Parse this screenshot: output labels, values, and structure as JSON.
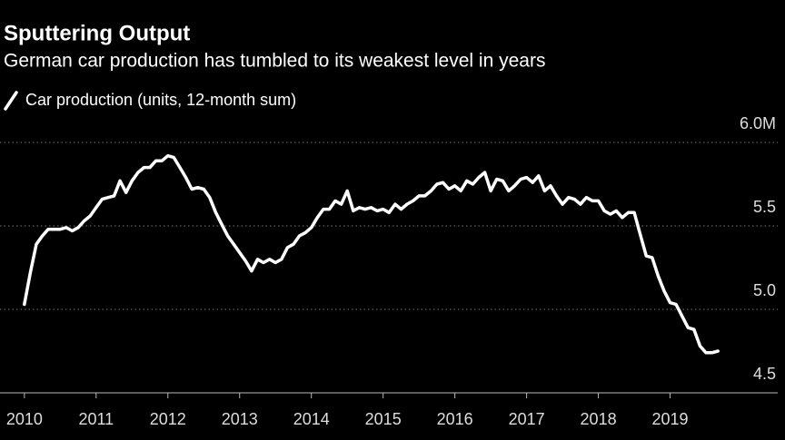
{
  "chart_data": {
    "type": "line",
    "title": "Sputtering Output",
    "subtitle": "German car production has tumbled to its weakest level in years",
    "series": [
      {
        "name": "Car production (units, 12-month sum)",
        "color": "#ffffff",
        "x": [
          2010,
          2010.083,
          2010.167,
          2010.25,
          2010.333,
          2010.417,
          2010.5,
          2010.583,
          2010.667,
          2010.75,
          2010.833,
          2010.917,
          2011,
          2011.083,
          2011.167,
          2011.25,
          2011.333,
          2011.417,
          2011.5,
          2011.583,
          2011.667,
          2011.75,
          2011.833,
          2011.917,
          2012,
          2012.083,
          2012.167,
          2012.25,
          2012.333,
          2012.417,
          2012.5,
          2012.583,
          2012.667,
          2012.75,
          2012.833,
          2012.917,
          2013,
          2013.083,
          2013.167,
          2013.25,
          2013.333,
          2013.417,
          2013.5,
          2013.583,
          2013.667,
          2013.75,
          2013.833,
          2013.917,
          2014,
          2014.083,
          2014.167,
          2014.25,
          2014.333,
          2014.417,
          2014.5,
          2014.583,
          2014.667,
          2014.75,
          2014.833,
          2014.917,
          2015,
          2015.083,
          2015.167,
          2015.25,
          2015.333,
          2015.417,
          2015.5,
          2015.583,
          2015.667,
          2015.75,
          2015.833,
          2015.917,
          2016,
          2016.083,
          2016.167,
          2016.25,
          2016.333,
          2016.417,
          2016.5,
          2016.583,
          2016.667,
          2016.75,
          2016.833,
          2016.917,
          2017,
          2017.083,
          2017.167,
          2017.25,
          2017.333,
          2017.417,
          2017.5,
          2017.583,
          2017.667,
          2017.75,
          2017.833,
          2017.917,
          2018,
          2018.083,
          2018.167,
          2018.25,
          2018.333,
          2018.417,
          2018.5,
          2018.583,
          2018.667,
          2018.75,
          2018.833,
          2018.917,
          2019,
          2019.083,
          2019.167,
          2019.25,
          2019.333,
          2019.417,
          2019.5,
          2019.583,
          2019.667
        ],
        "values": [
          5.03,
          5.22,
          5.39,
          5.44,
          5.48,
          5.48,
          5.48,
          5.49,
          5.47,
          5.49,
          5.53,
          5.56,
          5.61,
          5.66,
          5.67,
          5.68,
          5.77,
          5.7,
          5.77,
          5.82,
          5.85,
          5.85,
          5.89,
          5.89,
          5.92,
          5.91,
          5.85,
          5.79,
          5.72,
          5.73,
          5.72,
          5.67,
          5.58,
          5.51,
          5.44,
          5.39,
          5.34,
          5.29,
          5.23,
          5.3,
          5.28,
          5.3,
          5.28,
          5.3,
          5.37,
          5.39,
          5.44,
          5.46,
          5.49,
          5.55,
          5.6,
          5.6,
          5.65,
          5.63,
          5.71,
          5.59,
          5.61,
          5.6,
          5.61,
          5.59,
          5.6,
          5.58,
          5.63,
          5.6,
          5.63,
          5.65,
          5.68,
          5.68,
          5.71,
          5.75,
          5.76,
          5.72,
          5.74,
          5.71,
          5.77,
          5.75,
          5.79,
          5.82,
          5.71,
          5.78,
          5.77,
          5.71,
          5.74,
          5.78,
          5.79,
          5.76,
          5.8,
          5.71,
          5.74,
          5.68,
          5.63,
          5.67,
          5.66,
          5.63,
          5.67,
          5.65,
          5.65,
          5.59,
          5.57,
          5.59,
          5.55,
          5.58,
          5.58,
          5.45,
          5.32,
          5.31,
          5.2,
          5.11,
          5.04,
          5.03,
          4.96,
          4.89,
          4.88,
          4.78,
          4.74,
          4.74,
          4.75
        ]
      }
    ],
    "xlim": [
      2009.66,
      2020.5
    ],
    "xticks": [
      2010,
      2011,
      2012,
      2013,
      2014,
      2015,
      2016,
      2017,
      2018,
      2019
    ],
    "ylim": [
      4.5,
      6.0
    ],
    "yticks": [
      4.5,
      {
        "value": 5,
        "label": "5.0"
      },
      5.5,
      {
        "value": 6,
        "label": "6.0M"
      }
    ],
    "grid": true
  }
}
